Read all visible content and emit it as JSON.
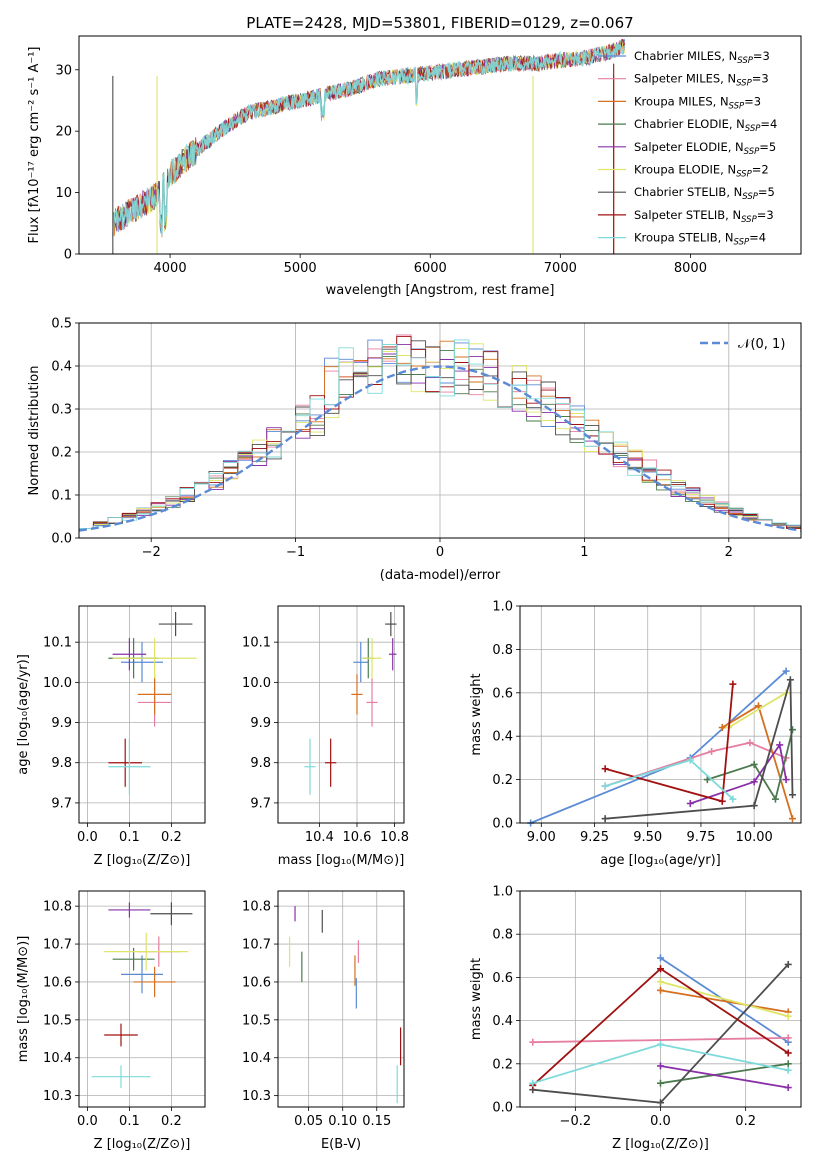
{
  "colors": {
    "chabrier_miles": "#5b8bd6",
    "salpeter_miles": "#e67ea2",
    "kroupa_miles": "#d4701f",
    "chabrier_elodie": "#4a7a4d",
    "salpeter_elodie": "#8a30a8",
    "kroupa_elodie": "#dfe568",
    "chabrier_stelib": "#4d4d4d",
    "salpeter_stelib": "#a11111",
    "kroupa_stelib": "#7edada",
    "normal_curve": "#5b8bd6"
  },
  "chart_data": [
    {
      "id": "spectrum",
      "type": "line",
      "title": "PLATE=2428, MJD=53801, FIBERID=0129, z=0.067",
      "xlabel": "wavelength [Angstrom, rest frame]",
      "ylabel": "Flux [fλ10⁻¹⁷ erg cm⁻² s⁻¹ A⁻¹]",
      "xlim": [
        3300,
        8850
      ],
      "ylim": [
        0,
        35.5
      ],
      "xticks": [
        "4000",
        "5000",
        "6000",
        "7000",
        "8000"
      ],
      "yticks": [
        "0",
        "10",
        "20",
        "30"
      ],
      "grid": false,
      "legend_position": "top-right",
      "legend": [
        "Chabrier MILES, N_SSP=3",
        "Salpeter MILES, N_SSP=3",
        "Kroupa MILES, N_SSP=3",
        "Chabrier ELODIE, N_SSP=4",
        "Salpeter ELODIE, N_SSP=5",
        "Kroupa ELODIE, N_SSP=2",
        "Chabrier STELIB, N_SSP=5",
        "Salpeter STELIB, N_SSP=3",
        "Kroupa STELIB, N_SSP=4"
      ],
      "trend_points": [
        [
          3560,
          5
        ],
        [
          3700,
          7
        ],
        [
          3900,
          9.5
        ],
        [
          4000,
          13
        ],
        [
          4150,
          16
        ],
        [
          4300,
          18.5
        ],
        [
          4450,
          21
        ],
        [
          4600,
          23
        ],
        [
          4800,
          24
        ],
        [
          5000,
          25
        ],
        [
          5200,
          26
        ],
        [
          5400,
          27
        ],
        [
          5600,
          28.5
        ],
        [
          5800,
          29
        ],
        [
          6000,
          29.5
        ],
        [
          6200,
          30
        ],
        [
          6400,
          30.5
        ],
        [
          6600,
          31
        ],
        [
          6800,
          31
        ],
        [
          7000,
          31.5
        ],
        [
          7200,
          32
        ],
        [
          7400,
          33
        ],
        [
          7500,
          34
        ]
      ]
    },
    {
      "id": "residuals",
      "type": "histogram",
      "xlabel": "(data-model)/error",
      "ylabel": "Normed distribution",
      "xlim": [
        -2.5,
        2.5
      ],
      "ylim": [
        0,
        0.5
      ],
      "xticks": [
        "−2",
        "−1",
        "0",
        "1",
        "2"
      ],
      "yticks": [
        "0.0",
        "0.1",
        "0.2",
        "0.3",
        "0.4",
        "0.5"
      ],
      "grid": true,
      "legend_position": "top-right",
      "legend": [
        "𝒩(0, 1)"
      ],
      "bin_width": 0.1,
      "curve": "standard normal pdf"
    },
    {
      "id": "age-vs-z",
      "type": "scatter",
      "xlabel": "Z [log₁₀(Z/Z⊙)]",
      "ylabel": "age  [log₁₀(age/yr)]",
      "xlim": [
        -0.02,
        0.28
      ],
      "ylim": [
        9.65,
        10.19
      ],
      "xticks": [
        "0.0",
        "0.1",
        "0.2"
      ],
      "yticks": [
        "9.7",
        "9.8",
        "9.9",
        "10.0",
        "10.1"
      ],
      "grid": true,
      "points": [
        {
          "model": "chabrier_miles",
          "x": 0.13,
          "y": 10.05,
          "xerr": 0.05,
          "yerr": 0.05
        },
        {
          "model": "salpeter_miles",
          "x": 0.16,
          "y": 9.95,
          "xerr": 0.04,
          "yerr": 0.06
        },
        {
          "model": "kroupa_miles",
          "x": 0.16,
          "y": 9.97,
          "xerr": 0.04,
          "yerr": 0.05
        },
        {
          "model": "chabrier_elodie",
          "x": 0.11,
          "y": 10.06,
          "xerr": 0.06,
          "yerr": 0.05
        },
        {
          "model": "salpeter_elodie",
          "x": 0.1,
          "y": 10.07,
          "xerr": 0.04,
          "yerr": 0.04
        },
        {
          "model": "kroupa_elodie",
          "x": 0.16,
          "y": 10.06,
          "xerr": 0.1,
          "yerr": 0.05
        },
        {
          "model": "chabrier_stelib",
          "x": 0.21,
          "y": 10.145,
          "xerr": 0.04,
          "yerr": 0.03
        },
        {
          "model": "salpeter_stelib",
          "x": 0.09,
          "y": 9.8,
          "xerr": 0.04,
          "yerr": 0.06
        },
        {
          "model": "kroupa_stelib",
          "x": 0.1,
          "y": 9.79,
          "xerr": 0.05,
          "yerr": 0.07
        }
      ]
    },
    {
      "id": "age-vs-mass",
      "type": "scatter",
      "xlabel": "mass [log₁₀(M/M⊙)]",
      "ylabel": "",
      "xlim": [
        10.18,
        10.85
      ],
      "ylim": [
        9.65,
        10.19
      ],
      "xticks": [
        "10.4",
        "10.6",
        "10.8"
      ],
      "yticks": [
        "9.7",
        "9.8",
        "9.9",
        "10.0",
        "10.1"
      ],
      "grid": true,
      "points": [
        {
          "model": "chabrier_miles",
          "x": 10.62,
          "y": 10.05,
          "xerr": 0.04,
          "yerr": 0.05
        },
        {
          "model": "salpeter_miles",
          "x": 10.68,
          "y": 9.95,
          "xerr": 0.03,
          "yerr": 0.06
        },
        {
          "model": "kroupa_miles",
          "x": 10.6,
          "y": 9.97,
          "xerr": 0.03,
          "yerr": 0.05
        },
        {
          "model": "chabrier_elodie",
          "x": 10.66,
          "y": 10.06,
          "xerr": 0.03,
          "yerr": 0.05
        },
        {
          "model": "salpeter_elodie",
          "x": 10.79,
          "y": 10.07,
          "xerr": 0.02,
          "yerr": 0.04
        },
        {
          "model": "kroupa_elodie",
          "x": 10.68,
          "y": 10.06,
          "xerr": 0.05,
          "yerr": 0.05
        },
        {
          "model": "chabrier_stelib",
          "x": 10.78,
          "y": 10.145,
          "xerr": 0.03,
          "yerr": 0.03
        },
        {
          "model": "salpeter_stelib",
          "x": 10.46,
          "y": 9.8,
          "xerr": 0.03,
          "yerr": 0.06
        },
        {
          "model": "kroupa_stelib",
          "x": 10.35,
          "y": 9.79,
          "xerr": 0.03,
          "yerr": 0.07
        }
      ]
    },
    {
      "id": "weight-vs-age",
      "type": "line",
      "xlabel": "age  [log₁₀(age/yr)]",
      "ylabel": "mass weight",
      "xlim": [
        8.9,
        10.22
      ],
      "ylim": [
        0,
        1.0
      ],
      "xticks": [
        "9.00",
        "9.25",
        "9.50",
        "9.75",
        "10.00"
      ],
      "yticks": [
        "0.0",
        "0.2",
        "0.4",
        "0.6",
        "0.8",
        "1.0"
      ],
      "grid": true,
      "series": [
        {
          "model": "chabrier_miles",
          "points": [
            [
              8.95,
              0.0
            ],
            [
              9.7,
              0.3
            ],
            [
              10.15,
              0.7
            ]
          ]
        },
        {
          "model": "salpeter_miles",
          "points": [
            [
              9.3,
              0.17
            ],
            [
              9.8,
              0.33
            ],
            [
              9.98,
              0.37
            ],
            [
              10.15,
              0.3
            ]
          ]
        },
        {
          "model": "kroupa_miles",
          "points": [
            [
              9.85,
              0.44
            ],
            [
              10.02,
              0.54
            ],
            [
              10.18,
              0.02
            ]
          ]
        },
        {
          "model": "chabrier_elodie",
          "points": [
            [
              9.78,
              0.2
            ],
            [
              10.0,
              0.27
            ],
            [
              10.1,
              0.11
            ],
            [
              10.18,
              0.43
            ]
          ]
        },
        {
          "model": "salpeter_elodie",
          "points": [
            [
              9.7,
              0.09
            ],
            [
              10.0,
              0.19
            ],
            [
              10.12,
              0.36
            ],
            [
              10.15,
              0.2
            ]
          ]
        },
        {
          "model": "kroupa_elodie",
          "points": [
            [
              9.88,
              0.44
            ],
            [
              10.15,
              0.6
            ]
          ]
        },
        {
          "model": "chabrier_stelib",
          "points": [
            [
              9.3,
              0.02
            ],
            [
              10.0,
              0.08
            ],
            [
              10.17,
              0.66
            ],
            [
              10.18,
              0.13
            ]
          ]
        },
        {
          "model": "salpeter_stelib",
          "points": [
            [
              9.3,
              0.25
            ],
            [
              9.85,
              0.1
            ],
            [
              9.9,
              0.64
            ]
          ]
        },
        {
          "model": "kroupa_stelib",
          "points": [
            [
              9.3,
              0.17
            ],
            [
              9.7,
              0.29
            ],
            [
              9.9,
              0.11
            ]
          ]
        }
      ]
    },
    {
      "id": "mass-vs-z",
      "type": "scatter",
      "xlabel": "Z [log₁₀(Z/Z⊙)]",
      "ylabel": "mass [log₁₀(M/M⊙)]",
      "xlim": [
        -0.02,
        0.28
      ],
      "ylim": [
        10.27,
        10.84
      ],
      "xticks": [
        "0.0",
        "0.1",
        "0.2"
      ],
      "yticks": [
        "10.3",
        "10.4",
        "10.5",
        "10.6",
        "10.7",
        "10.8"
      ],
      "grid": true,
      "points": [
        {
          "model": "chabrier_miles",
          "x": 0.13,
          "y": 10.62,
          "xerr": 0.05,
          "yerr": 0.05
        },
        {
          "model": "salpeter_miles",
          "x": 0.17,
          "y": 10.68,
          "xerr": 0.05,
          "yerr": 0.04
        },
        {
          "model": "kroupa_miles",
          "x": 0.16,
          "y": 10.6,
          "xerr": 0.05,
          "yerr": 0.04
        },
        {
          "model": "chabrier_elodie",
          "x": 0.11,
          "y": 10.66,
          "xerr": 0.05,
          "yerr": 0.03
        },
        {
          "model": "salpeter_elodie",
          "x": 0.1,
          "y": 10.79,
          "xerr": 0.05,
          "yerr": 0.02
        },
        {
          "model": "kroupa_elodie",
          "x": 0.14,
          "y": 10.68,
          "xerr": 0.1,
          "yerr": 0.05
        },
        {
          "model": "chabrier_stelib",
          "x": 0.2,
          "y": 10.78,
          "xerr": 0.05,
          "yerr": 0.03
        },
        {
          "model": "salpeter_stelib",
          "x": 0.08,
          "y": 10.46,
          "xerr": 0.04,
          "yerr": 0.03
        },
        {
          "model": "kroupa_stelib",
          "x": 0.08,
          "y": 10.35,
          "xerr": 0.07,
          "yerr": 0.03
        }
      ]
    },
    {
      "id": "mass-vs-ebv",
      "type": "scatter",
      "xlabel": "E(B-V)",
      "ylabel": "",
      "xlim": [
        0.005,
        0.19
      ],
      "ylim": [
        10.27,
        10.84
      ],
      "xticks": [
        "0.05",
        "0.10",
        "0.15"
      ],
      "yticks": [
        "10.3",
        "10.4",
        "10.5",
        "10.6",
        "10.7",
        "10.8"
      ],
      "grid": true,
      "points": [
        {
          "model": "chabrier_miles",
          "x": 0.12,
          "y": 10.57,
          "yerr": 0.04
        },
        {
          "model": "salpeter_miles",
          "x": 0.123,
          "y": 10.68,
          "yerr": 0.03
        },
        {
          "model": "kroupa_miles",
          "x": 0.118,
          "y": 10.63,
          "yerr": 0.04
        },
        {
          "model": "chabrier_elodie",
          "x": 0.04,
          "y": 10.64,
          "yerr": 0.04
        },
        {
          "model": "salpeter_elodie",
          "x": 0.03,
          "y": 10.78,
          "yerr": 0.02
        },
        {
          "model": "kroupa_elodie",
          "x": 0.022,
          "y": 10.68,
          "yerr": 0.04
        },
        {
          "model": "chabrier_stelib",
          "x": 0.07,
          "y": 10.76,
          "yerr": 0.03
        },
        {
          "model": "salpeter_stelib",
          "x": 0.185,
          "y": 10.43,
          "yerr": 0.05
        },
        {
          "model": "kroupa_stelib",
          "x": 0.18,
          "y": 10.33,
          "yerr": 0.05
        }
      ]
    },
    {
      "id": "weight-vs-z",
      "type": "line",
      "xlabel": "Z [log₁₀(Z/Z⊙)]",
      "ylabel": "mass weight",
      "xlim": [
        -0.33,
        0.33
      ],
      "ylim": [
        0,
        1.0
      ],
      "xticks": [
        "−0.2",
        "0.0",
        "0.2"
      ],
      "yticks": [
        "0.0",
        "0.2",
        "0.4",
        "0.6",
        "0.8",
        "1.0"
      ],
      "grid": true,
      "series": [
        {
          "model": "chabrier_miles",
          "points": [
            [
              0.0,
              0.69
            ],
            [
              0.3,
              0.3
            ]
          ]
        },
        {
          "model": "salpeter_miles",
          "points": [
            [
              -0.3,
              0.3
            ],
            [
              0.3,
              0.32
            ]
          ]
        },
        {
          "model": "kroupa_miles",
          "points": [
            [
              0.0,
              0.54
            ],
            [
              0.3,
              0.44
            ]
          ]
        },
        {
          "model": "chabrier_elodie",
          "points": [
            [
              0.0,
              0.11
            ],
            [
              0.3,
              0.2
            ]
          ]
        },
        {
          "model": "salpeter_elodie",
          "points": [
            [
              0.0,
              0.19
            ],
            [
              0.3,
              0.09
            ]
          ]
        },
        {
          "model": "kroupa_elodie",
          "points": [
            [
              0.0,
              0.58
            ],
            [
              0.3,
              0.42
            ]
          ]
        },
        {
          "model": "chabrier_stelib",
          "points": [
            [
              -0.3,
              0.08
            ],
            [
              0.0,
              0.02
            ],
            [
              0.3,
              0.66
            ]
          ]
        },
        {
          "model": "salpeter_stelib",
          "points": [
            [
              -0.3,
              0.1
            ],
            [
              0.0,
              0.64
            ],
            [
              0.3,
              0.25
            ]
          ]
        },
        {
          "model": "kroupa_stelib",
          "points": [
            [
              -0.3,
              0.11
            ],
            [
              0.0,
              0.29
            ],
            [
              0.3,
              0.17
            ]
          ]
        }
      ]
    }
  ]
}
